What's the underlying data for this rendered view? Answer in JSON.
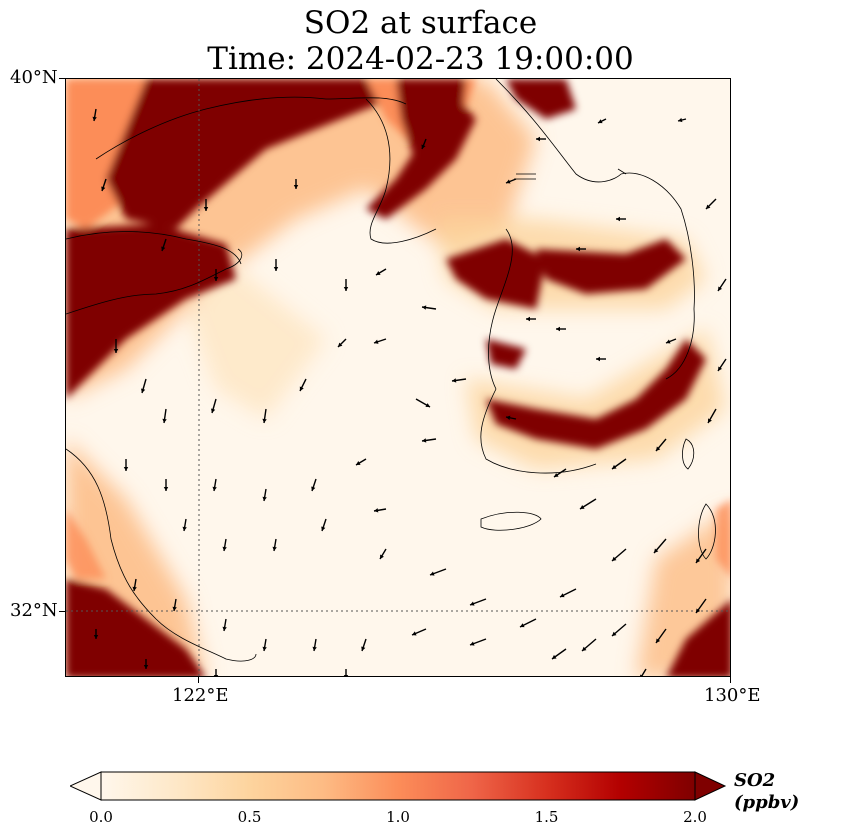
{
  "title": {
    "line1": "SO2 at surface",
    "line2": "Time: 2024-02-23 19:00:00"
  },
  "axes": {
    "lat_ticks": [
      {
        "value": 40,
        "label": "40°N"
      },
      {
        "value": 32,
        "label": "32°N"
      }
    ],
    "lon_ticks": [
      {
        "value": 122,
        "label": "122°E"
      },
      {
        "value": 130,
        "label": "130°E"
      }
    ],
    "lon_range": [
      120,
      130
    ],
    "lat_range": [
      31,
      40
    ],
    "gridlines": "dotted at 122°E and 32°N"
  },
  "colorbar": {
    "title": "SO2 (ppbv)",
    "range": [
      0.0,
      2.0
    ],
    "ticks": [
      "0.0",
      "0.5",
      "1.0",
      "1.5",
      "2.0"
    ],
    "extend": "both",
    "colormap": "OrRd",
    "colors": [
      "#fff7ec",
      "#fee8c8",
      "#fdd49e",
      "#fdbb84",
      "#fc8d59",
      "#ef6548",
      "#d7301f",
      "#b30000",
      "#7f0000"
    ]
  },
  "map_content": {
    "field": "SO2 surface concentration",
    "overlay": "wind vectors",
    "high_regions": [
      "northwest coast and Bohai region",
      "Korean peninsula west coast",
      "southern Korea coast",
      "southeast corner near 130°E 31°N",
      "southwest corner near 120°E 31.5°N"
    ]
  }
}
